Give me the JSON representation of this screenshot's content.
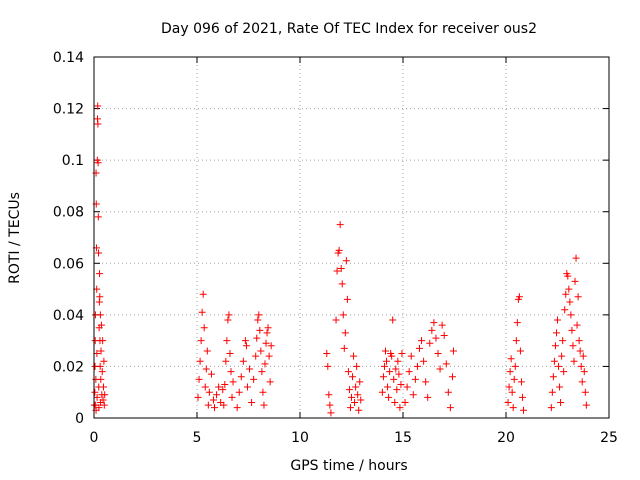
{
  "chart_data": {
    "type": "scatter",
    "title": "Day 096 of 2021, Rate Of TEC Index for receiver ous2",
    "xlabel": "GPS time / hours",
    "ylabel": "ROTI / TECUs",
    "xlim": [
      0,
      25
    ],
    "ylim": [
      0,
      0.14
    ],
    "xticks": [
      0,
      5,
      10,
      15,
      20,
      25
    ],
    "xtick_labels": [
      "0",
      "5",
      "10",
      "15",
      "20",
      "25"
    ],
    "yticks": [
      0,
      0.02,
      0.04,
      0.06,
      0.08,
      0.1,
      0.12,
      0.14
    ],
    "ytick_labels": [
      "0",
      "0.02",
      "0.04",
      "0.06",
      "0.08",
      "0.1",
      "0.12",
      "0.14"
    ],
    "grid": true,
    "marker": "+",
    "color": "#ff0000",
    "series": [
      {
        "points": [
          [
            0.02,
            0.005
          ],
          [
            0.04,
            0.01
          ],
          [
            0.05,
            0.02
          ],
          [
            0.06,
            0.03
          ],
          [
            0.07,
            0.04
          ],
          [
            0.08,
            0.005
          ],
          [
            0.09,
            0.015
          ],
          [
            0.1,
            0.003
          ],
          [
            0.1,
            0.095
          ],
          [
            0.11,
            0.083
          ],
          [
            0.12,
            0.066
          ],
          [
            0.13,
            0.05
          ],
          [
            0.14,
            0.025
          ],
          [
            0.15,
            0.008
          ],
          [
            0.16,
            0.1
          ],
          [
            0.17,
            0.116
          ],
          [
            0.18,
            0.121
          ],
          [
            0.19,
            0.114
          ],
          [
            0.2,
            0.099
          ],
          [
            0.21,
            0.078
          ],
          [
            0.22,
            0.064
          ],
          [
            0.23,
            0.012
          ],
          [
            0.24,
            0.004
          ],
          [
            0.25,
            0.035
          ],
          [
            0.26,
            0.045
          ],
          [
            0.27,
            0.056
          ],
          [
            0.28,
            0.047
          ],
          [
            0.29,
            0.03
          ],
          [
            0.3,
            0.02
          ],
          [
            0.31,
            0.04
          ],
          [
            0.32,
            0.006
          ],
          [
            0.33,
            0.015
          ],
          [
            0.34,
            0.026
          ],
          [
            0.36,
            0.036
          ],
          [
            0.38,
            0.009
          ],
          [
            0.4,
            0.018
          ],
          [
            0.42,
            0.03
          ],
          [
            0.44,
            0.007
          ],
          [
            0.46,
            0.012
          ],
          [
            0.48,
            0.022
          ],
          [
            0.5,
            0.005
          ],
          [
            0.52,
            0.009
          ],
          [
            5.05,
            0.008
          ],
          [
            5.1,
            0.015
          ],
          [
            5.15,
            0.022
          ],
          [
            5.2,
            0.03
          ],
          [
            5.25,
            0.041
          ],
          [
            5.3,
            0.048
          ],
          [
            5.35,
            0.035
          ],
          [
            5.4,
            0.012
          ],
          [
            5.45,
            0.019
          ],
          [
            5.5,
            0.026
          ],
          [
            5.55,
            0.005
          ],
          [
            5.6,
            0.01
          ],
          [
            5.7,
            0.017
          ],
          [
            5.8,
            0.007
          ],
          [
            5.85,
            0.004
          ],
          [
            5.95,
            0.009
          ],
          [
            6.05,
            0.012
          ],
          [
            6.15,
            0.006
          ],
          [
            6.25,
            0.011
          ],
          [
            6.3,
            0.005
          ],
          [
            6.35,
            0.013
          ],
          [
            6.4,
            0.022
          ],
          [
            6.45,
            0.03
          ],
          [
            6.5,
            0.038
          ],
          [
            6.55,
            0.04
          ],
          [
            6.6,
            0.025
          ],
          [
            6.65,
            0.018
          ],
          [
            6.7,
            0.008
          ],
          [
            6.75,
            0.014
          ],
          [
            6.95,
            0.004
          ],
          [
            7.05,
            0.01
          ],
          [
            7.15,
            0.016
          ],
          [
            7.25,
            0.022
          ],
          [
            7.35,
            0.03
          ],
          [
            7.4,
            0.028
          ],
          [
            7.45,
            0.012
          ],
          [
            7.55,
            0.019
          ],
          [
            7.65,
            0.006
          ],
          [
            7.75,
            0.015
          ],
          [
            7.85,
            0.024
          ],
          [
            7.9,
            0.031
          ],
          [
            7.95,
            0.038
          ],
          [
            8.0,
            0.04
          ],
          [
            8.05,
            0.034
          ],
          [
            8.1,
            0.026
          ],
          [
            8.15,
            0.018
          ],
          [
            8.2,
            0.01
          ],
          [
            8.25,
            0.005
          ],
          [
            8.3,
            0.021
          ],
          [
            8.35,
            0.029
          ],
          [
            8.4,
            0.033
          ],
          [
            8.45,
            0.035
          ],
          [
            8.5,
            0.024
          ],
          [
            8.55,
            0.014
          ],
          [
            8.6,
            0.028
          ],
          [
            11.3,
            0.025
          ],
          [
            11.35,
            0.02
          ],
          [
            11.4,
            0.009
          ],
          [
            11.45,
            0.005
          ],
          [
            11.5,
            0.002
          ],
          [
            11.75,
            0.038
          ],
          [
            11.8,
            0.057
          ],
          [
            11.85,
            0.064
          ],
          [
            11.9,
            0.065
          ],
          [
            11.95,
            0.075
          ],
          [
            12.0,
            0.058
          ],
          [
            12.05,
            0.052
          ],
          [
            12.1,
            0.04
          ],
          [
            12.15,
            0.027
          ],
          [
            12.2,
            0.033
          ],
          [
            12.25,
            0.061
          ],
          [
            12.3,
            0.046
          ],
          [
            12.35,
            0.018
          ],
          [
            12.4,
            0.011
          ],
          [
            12.45,
            0.004
          ],
          [
            12.5,
            0.008
          ],
          [
            12.55,
            0.016
          ],
          [
            12.6,
            0.024
          ],
          [
            12.65,
            0.006
          ],
          [
            12.7,
            0.012
          ],
          [
            12.75,
            0.02
          ],
          [
            12.8,
            0.009
          ],
          [
            12.85,
            0.003
          ],
          [
            12.9,
            0.014
          ],
          [
            12.95,
            0.007
          ],
          [
            14.0,
            0.01
          ],
          [
            14.05,
            0.016
          ],
          [
            14.1,
            0.02
          ],
          [
            14.15,
            0.026
          ],
          [
            14.2,
            0.022
          ],
          [
            14.25,
            0.012
          ],
          [
            14.3,
            0.008
          ],
          [
            14.35,
            0.018
          ],
          [
            14.4,
            0.025
          ],
          [
            14.45,
            0.024
          ],
          [
            14.5,
            0.038
          ],
          [
            14.55,
            0.015
          ],
          [
            14.6,
            0.006
          ],
          [
            14.65,
            0.019
          ],
          [
            14.7,
            0.011
          ],
          [
            14.75,
            0.022
          ],
          [
            14.8,
            0.017
          ],
          [
            14.85,
            0.004
          ],
          [
            14.9,
            0.013
          ],
          [
            14.95,
            0.025
          ],
          [
            15.1,
            0.006
          ],
          [
            15.2,
            0.012
          ],
          [
            15.3,
            0.018
          ],
          [
            15.4,
            0.024
          ],
          [
            15.5,
            0.009
          ],
          [
            15.6,
            0.015
          ],
          [
            15.7,
            0.02
          ],
          [
            15.8,
            0.027
          ],
          [
            15.9,
            0.03
          ],
          [
            16.0,
            0.022
          ],
          [
            16.1,
            0.014
          ],
          [
            16.2,
            0.008
          ],
          [
            16.3,
            0.029
          ],
          [
            16.4,
            0.034
          ],
          [
            16.5,
            0.037
          ],
          [
            16.6,
            0.031
          ],
          [
            16.7,
            0.025
          ],
          [
            16.8,
            0.019
          ],
          [
            16.9,
            0.036
          ],
          [
            17.0,
            0.032
          ],
          [
            17.1,
            0.021
          ],
          [
            17.2,
            0.01
          ],
          [
            17.3,
            0.004
          ],
          [
            17.4,
            0.016
          ],
          [
            17.45,
            0.026
          ],
          [
            20.1,
            0.006
          ],
          [
            20.15,
            0.012
          ],
          [
            20.2,
            0.018
          ],
          [
            20.25,
            0.023
          ],
          [
            20.3,
            0.01
          ],
          [
            20.35,
            0.004
          ],
          [
            20.4,
            0.015
          ],
          [
            20.45,
            0.02
          ],
          [
            20.5,
            0.03
          ],
          [
            20.55,
            0.037
          ],
          [
            20.6,
            0.046
          ],
          [
            20.65,
            0.047
          ],
          [
            20.7,
            0.026
          ],
          [
            20.75,
            0.014
          ],
          [
            20.8,
            0.008
          ],
          [
            20.85,
            0.003
          ],
          [
            22.2,
            0.004
          ],
          [
            22.25,
            0.01
          ],
          [
            22.3,
            0.016
          ],
          [
            22.35,
            0.022
          ],
          [
            22.4,
            0.028
          ],
          [
            22.45,
            0.033
          ],
          [
            22.5,
            0.038
          ],
          [
            22.55,
            0.02
          ],
          [
            22.6,
            0.012
          ],
          [
            22.65,
            0.006
          ],
          [
            22.7,
            0.024
          ],
          [
            22.75,
            0.03
          ],
          [
            22.8,
            0.018
          ],
          [
            22.85,
            0.042
          ],
          [
            22.9,
            0.048
          ],
          [
            22.95,
            0.056
          ],
          [
            23.0,
            0.055
          ],
          [
            23.05,
            0.05
          ],
          [
            23.1,
            0.045
          ],
          [
            23.15,
            0.04
          ],
          [
            23.2,
            0.034
          ],
          [
            23.25,
            0.028
          ],
          [
            23.3,
            0.022
          ],
          [
            23.35,
            0.053
          ],
          [
            23.4,
            0.062
          ],
          [
            23.45,
            0.036
          ],
          [
            23.5,
            0.047
          ],
          [
            23.55,
            0.03
          ],
          [
            23.6,
            0.026
          ],
          [
            23.65,
            0.02
          ],
          [
            23.7,
            0.014
          ],
          [
            23.75,
            0.024
          ],
          [
            23.8,
            0.018
          ],
          [
            23.85,
            0.01
          ],
          [
            23.9,
            0.005
          ]
        ]
      }
    ]
  }
}
